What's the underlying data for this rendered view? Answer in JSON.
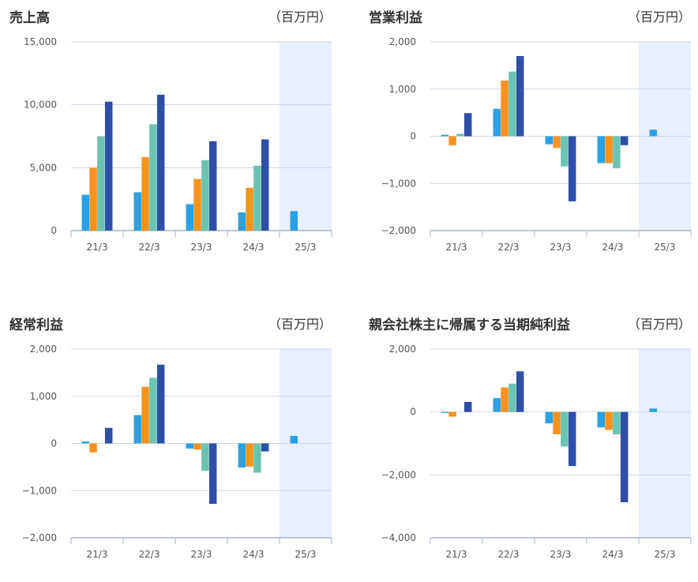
{
  "colors": {
    "series": [
      "#2aa1e3",
      "#f7931e",
      "#6cc3b0",
      "#2e4fa8"
    ],
    "forecast_bg": "#e8efff",
    "grid": "#ccd3e2",
    "axis": "#a9b3c8"
  },
  "chart_data": [
    {
      "type": "bar",
      "title": "売上高",
      "unit": "（百万円）",
      "categories": [
        "21/3",
        "22/3",
        "23/3",
        "24/3",
        "25/3"
      ],
      "y_ticks": [
        "15,000",
        "10,000",
        "5,000",
        "0"
      ],
      "y_tick_values": [
        15000,
        10000,
        5000,
        0
      ],
      "ylim": [
        0,
        15000
      ],
      "forecast_category": "25/3",
      "series": [
        {
          "values": [
            2850,
            3050,
            2100,
            1450,
            1550
          ]
        },
        {
          "values": [
            5000,
            5850,
            4100,
            3400,
            null
          ]
        },
        {
          "values": [
            7500,
            8450,
            5600,
            5150,
            null
          ]
        },
        {
          "values": [
            10250,
            10800,
            7100,
            7250,
            null
          ]
        }
      ]
    },
    {
      "type": "bar",
      "title": "営業利益",
      "unit": "（百万円）",
      "categories": [
        "21/3",
        "22/3",
        "23/3",
        "24/3",
        "25/3"
      ],
      "y_ticks": [
        "2,000",
        "1,000",
        "0",
        "−1,000",
        "−2,000"
      ],
      "y_tick_values": [
        2000,
        1000,
        0,
        -1000,
        -2000
      ],
      "ylim": [
        -2000,
        2000
      ],
      "forecast_category": "25/3",
      "series": [
        {
          "values": [
            30,
            580,
            -170,
            -570,
            140
          ]
        },
        {
          "values": [
            -190,
            1180,
            -250,
            -570,
            null
          ]
        },
        {
          "values": [
            50,
            1370,
            -640,
            -680,
            null
          ]
        },
        {
          "values": [
            490,
            1700,
            -1380,
            -190,
            null
          ]
        }
      ]
    },
    {
      "type": "bar",
      "title": "経常利益",
      "unit": "（百万円）",
      "categories": [
        "21/3",
        "22/3",
        "23/3",
        "24/3",
        "25/3"
      ],
      "y_ticks": [
        "2,000",
        "1,000",
        "0",
        "−1,000",
        "−2,000"
      ],
      "y_tick_values": [
        2000,
        1000,
        0,
        -1000,
        -2000
      ],
      "ylim": [
        -2000,
        2000
      ],
      "forecast_category": "25/3",
      "series": [
        {
          "values": [
            40,
            600,
            -110,
            -510,
            160
          ]
        },
        {
          "values": [
            -190,
            1200,
            -130,
            -490,
            null
          ]
        },
        {
          "values": [
            0,
            1390,
            -580,
            -620,
            null
          ]
        },
        {
          "values": [
            330,
            1670,
            -1280,
            -170,
            null
          ]
        }
      ]
    },
    {
      "type": "bar",
      "title": "親会社株主に帰属する当期純利益",
      "unit": "（百万円）",
      "categories": [
        "21/3",
        "22/3",
        "23/3",
        "24/3",
        "25/3"
      ],
      "y_ticks": [
        "2,000",
        "0",
        "−2,000",
        "−4,000"
      ],
      "y_tick_values": [
        2000,
        0,
        -2000,
        -4000
      ],
      "ylim": [
        -4000,
        2000
      ],
      "forecast_category": "25/3",
      "series": [
        {
          "values": [
            -30,
            440,
            -360,
            -490,
            110
          ]
        },
        {
          "values": [
            -150,
            780,
            -710,
            -570,
            null
          ]
        },
        {
          "values": [
            0,
            900,
            -1100,
            -710,
            null
          ]
        },
        {
          "values": [
            320,
            1290,
            -1720,
            -2870,
            null
          ]
        }
      ]
    }
  ]
}
